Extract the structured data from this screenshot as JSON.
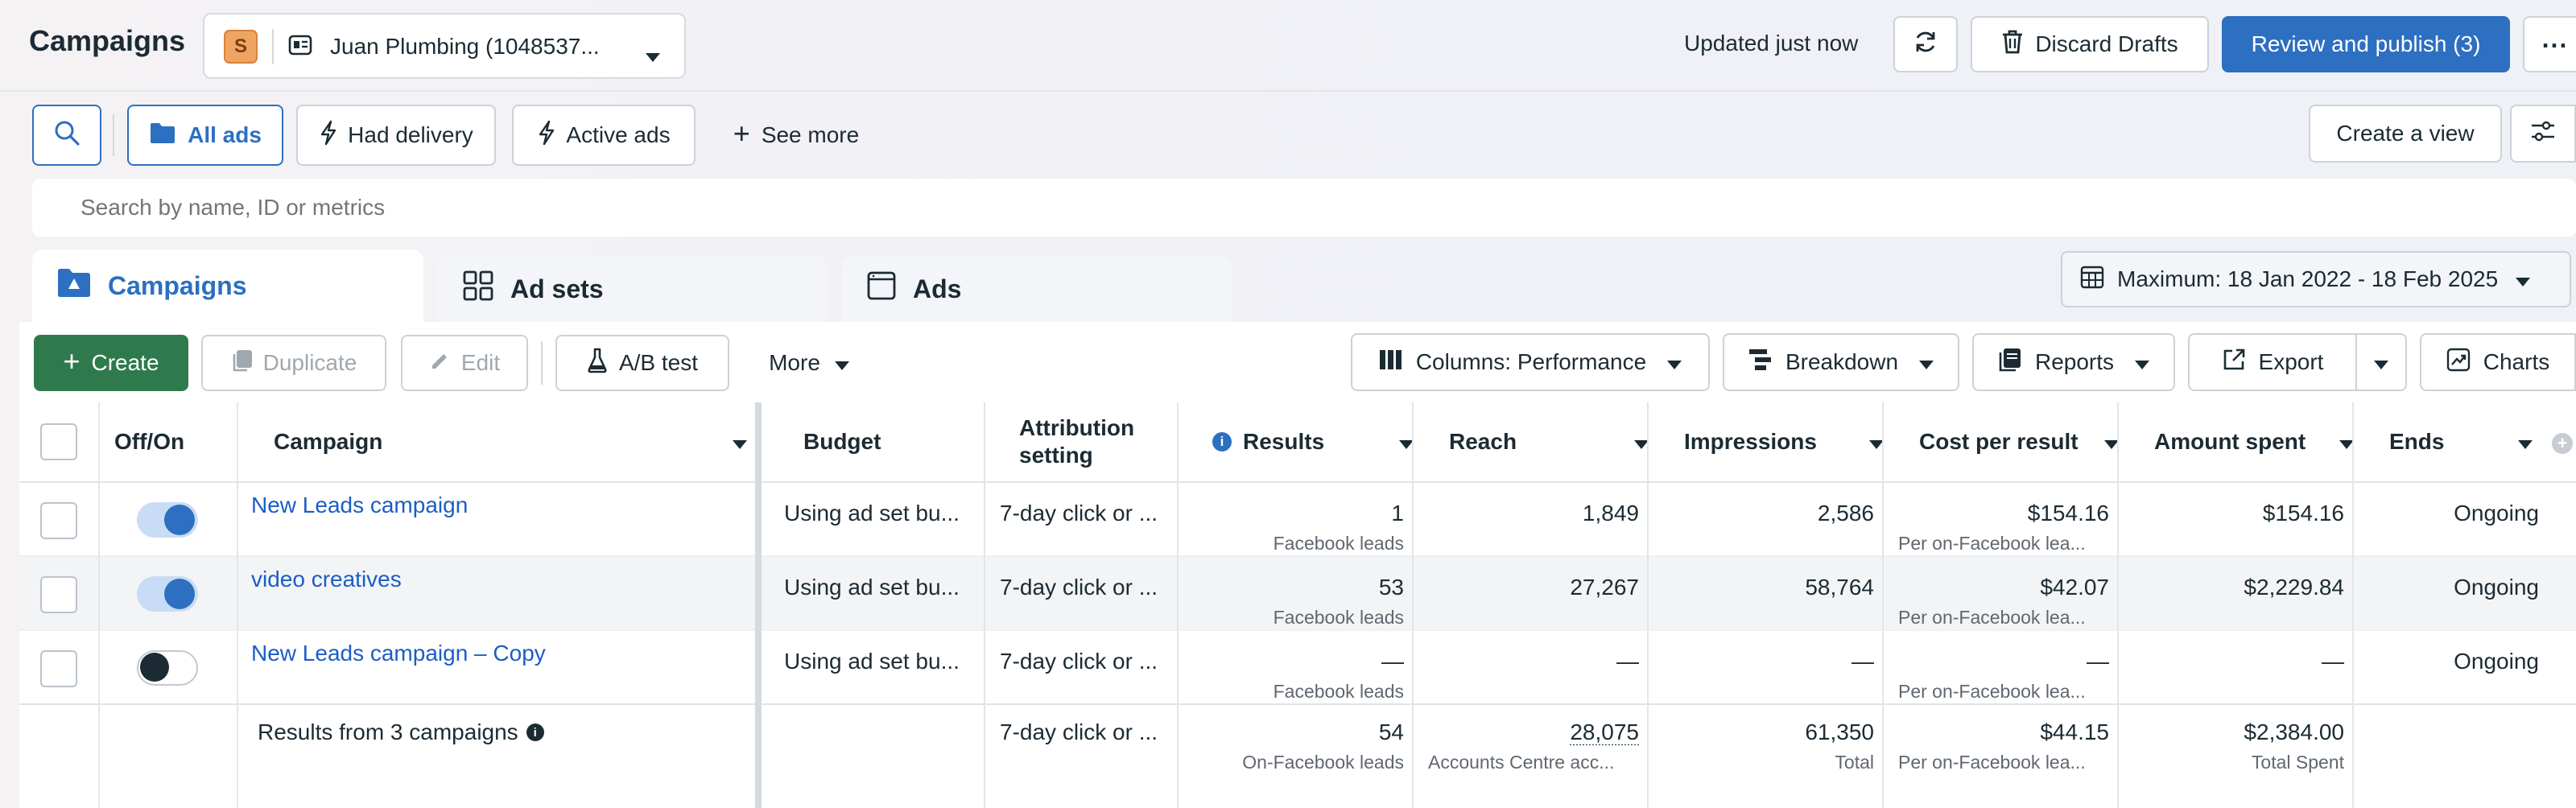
{
  "header": {
    "title": "Campaigns",
    "account_badge": "S",
    "account_name": "Juan Plumbing (1048537...",
    "updated": "Updated just now",
    "discard_label": "Discard Drafts",
    "publish_label": "Review and publish (3)",
    "more_icon": "ellipsis-icon"
  },
  "filters": {
    "all_ads": "All ads",
    "had_delivery": "Had delivery",
    "active_ads": "Active ads",
    "see_more": "See more",
    "create_view": "Create a view"
  },
  "search": {
    "placeholder": "Search by name, ID or metrics"
  },
  "tabs": [
    {
      "label": "Campaigns"
    },
    {
      "label": "Ad sets"
    },
    {
      "label": "Ads"
    }
  ],
  "date_range": "Maximum: 18 Jan 2022 - 18 Feb 2025",
  "toolbar": {
    "create": "Create",
    "duplicate": "Duplicate",
    "edit": "Edit",
    "ab_test": "A/B test",
    "more": "More",
    "columns": "Columns: Performance",
    "breakdown": "Breakdown",
    "reports": "Reports",
    "export": "Export",
    "charts": "Charts"
  },
  "columns": {
    "offon": "Off/On",
    "campaign": "Campaign",
    "budget": "Budget",
    "attribution_1": "Attribution",
    "attribution_2": "setting",
    "results": "Results",
    "reach": "Reach",
    "impressions": "Impressions",
    "cost": "Cost per result",
    "spent": "Amount spent",
    "ends": "Ends"
  },
  "rows": [
    {
      "name": "New Leads campaign",
      "on": true,
      "budget": "Using ad set bu...",
      "attribution": "7-day click or ...",
      "results": "1",
      "results_sub": "Facebook leads",
      "reach": "1,849",
      "impressions": "2,586",
      "cost": "$154.16",
      "cost_sub": "Per on-Facebook lea...",
      "spent": "$154.16",
      "ends": "Ongoing"
    },
    {
      "name": "video creatives",
      "on": true,
      "budget": "Using ad set bu...",
      "attribution": "7-day click or ...",
      "results": "53",
      "results_sub": "Facebook leads",
      "reach": "27,267",
      "impressions": "58,764",
      "cost": "$42.07",
      "cost_sub": "Per on-Facebook lea...",
      "spent": "$2,229.84",
      "ends": "Ongoing"
    },
    {
      "name": "New Leads campaign – Copy",
      "on": false,
      "budget": "Using ad set bu...",
      "attribution": "7-day click or ...",
      "results": "—",
      "results_sub": "Facebook leads",
      "reach": "—",
      "impressions": "—",
      "cost": "—",
      "cost_sub": "Per on-Facebook lea...",
      "spent": "—",
      "ends": "Ongoing"
    }
  ],
  "totals": {
    "label": "Results from 3 campaigns",
    "attribution": "7-day click or ...",
    "results": "54",
    "results_sub": "On-Facebook leads",
    "reach": "28,075",
    "reach_sub": "Accounts Centre acc...",
    "impressions": "61,350",
    "impressions_sub": "Total",
    "cost": "$44.15",
    "cost_sub": "Per on-Facebook lea...",
    "spent": "$2,384.00",
    "spent_sub": "Total Spent"
  },
  "colors": {
    "brand_blue": "#2d6fc1",
    "create_green": "#2f7a4c",
    "link": "#1b5ec4"
  }
}
